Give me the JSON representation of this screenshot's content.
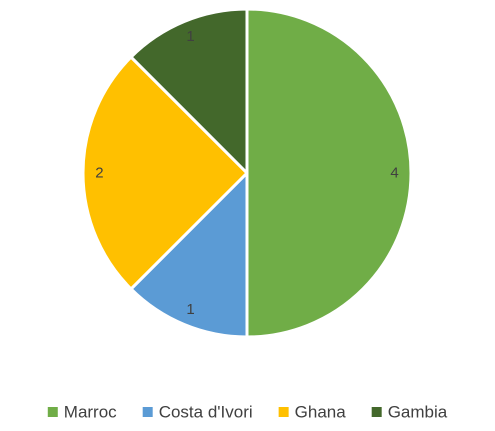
{
  "chart_data": {
    "type": "pie",
    "title": "",
    "categories": [
      "Marroc",
      "Costa d'Ivori",
      "Ghana",
      "Gambia"
    ],
    "values": [
      4,
      1,
      2,
      1
    ],
    "data_labels": [
      "4",
      "1",
      "2",
      "1"
    ],
    "colors": [
      "#70ad47",
      "#5b9bd5",
      "#ffc000",
      "#43682b"
    ],
    "start_angle_deg": 0,
    "direction": "clockwise",
    "legend_position": "bottom"
  }
}
